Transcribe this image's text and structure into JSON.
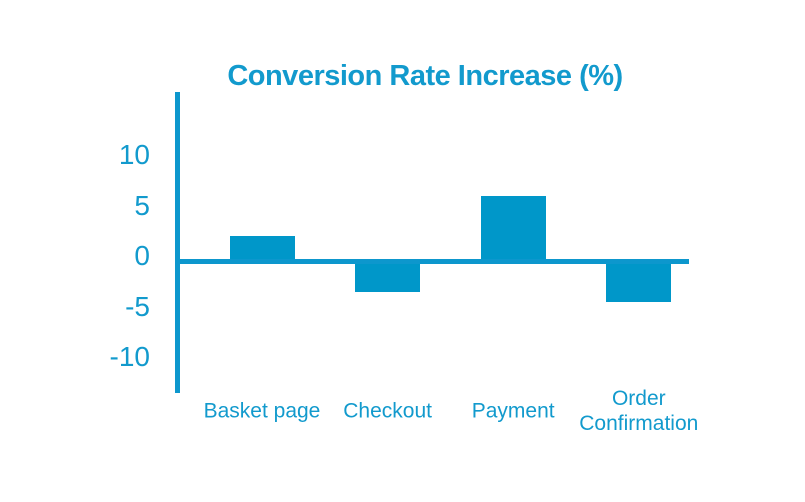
{
  "colors": {
    "background": "#ffffff",
    "accent_text": "#129ACD",
    "bar": "#0097C9",
    "axis": "#0D97CD"
  },
  "chart_data": {
    "type": "bar",
    "title": "Conversion Rate Increase (%)",
    "categories": [
      "Basket page",
      "Checkout",
      "Payment",
      "Order Confirmation"
    ],
    "values": [
      2.5,
      -3,
      6.5,
      -4
    ],
    "series": [
      {
        "name": "Conversion Rate Increase (%)",
        "values": [
          2.5,
          -3,
          6.5,
          -4
        ]
      }
    ],
    "xlabel": "",
    "ylabel": "",
    "y_ticks": [
      10,
      5,
      0,
      -5,
      -10
    ],
    "ylim": [
      -13,
      17
    ],
    "grid": false,
    "legend": "none",
    "bar_color": "#0097C9",
    "axis_color": "#0D97CD",
    "label_color": "#129ACD"
  }
}
